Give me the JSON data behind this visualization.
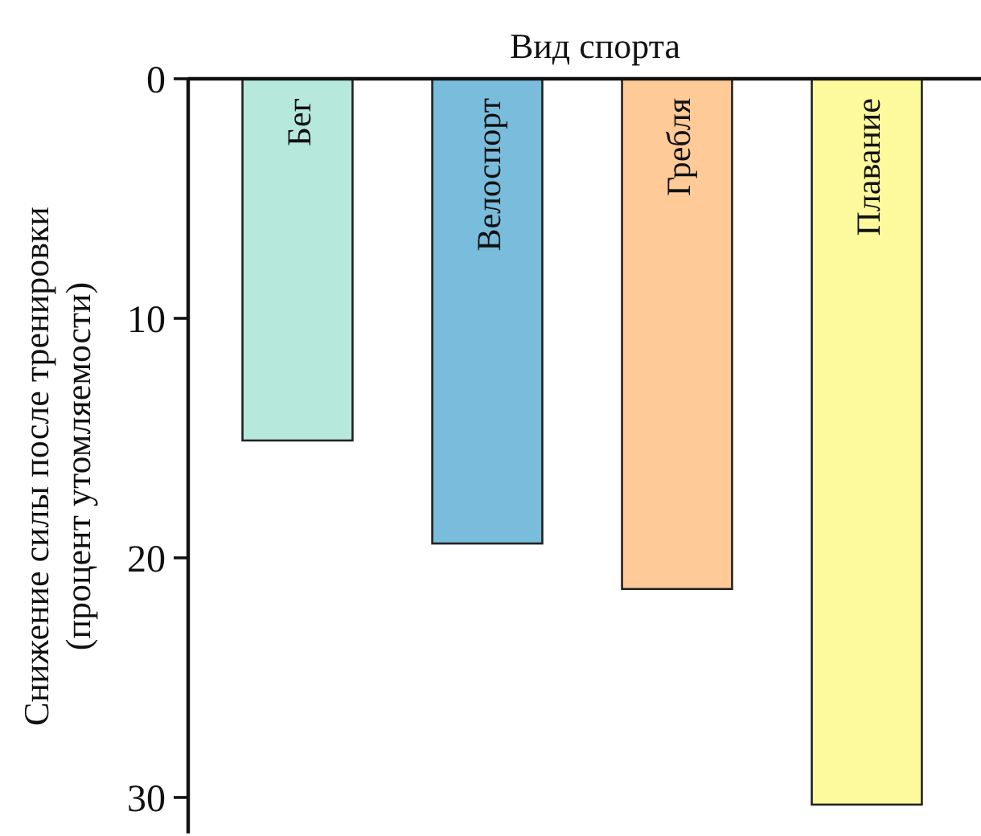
{
  "chart_data": {
    "type": "bar",
    "xlabel": "Вид спорта",
    "ylabel": "Снижение силы после тренировки\n(процент утомляемости)",
    "categories": [
      "Бег",
      "Велоспорт",
      "Гребля",
      "Плавание"
    ],
    "values": [
      15.1,
      19.4,
      21.3,
      30.3
    ],
    "colors": [
      "#b6e9dc",
      "#79bcdc",
      "#fdca98",
      "#fdfa9d"
    ],
    "ylim": [
      31.5,
      0
    ],
    "yticks": [
      0,
      10,
      20,
      30
    ],
    "grid": false
  }
}
